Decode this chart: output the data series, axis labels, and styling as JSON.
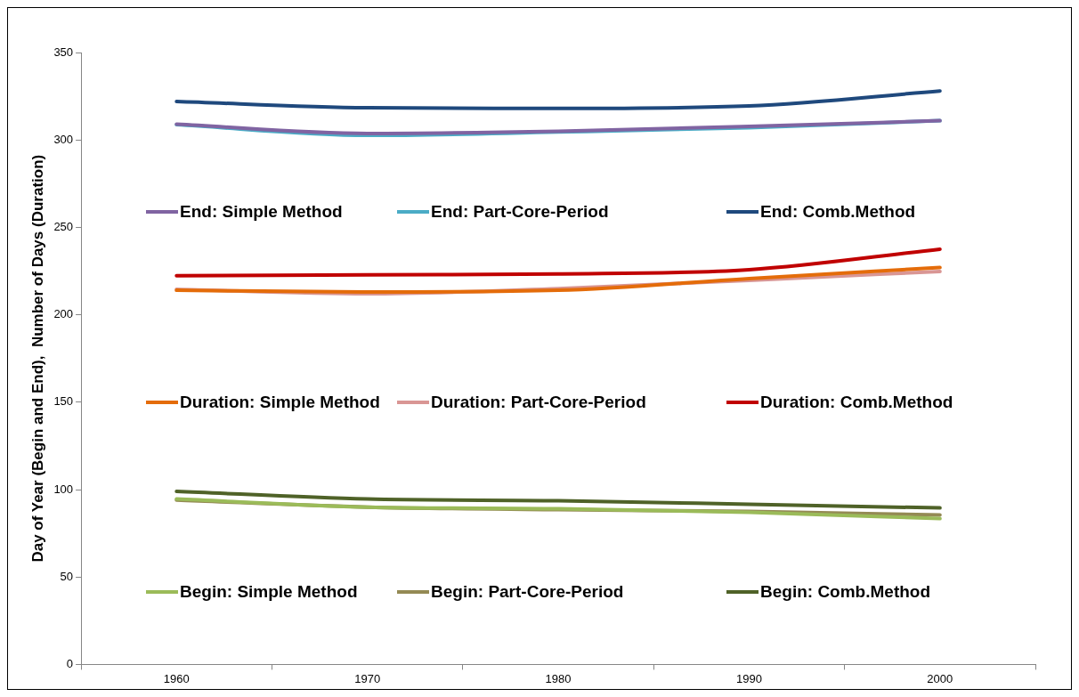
{
  "chart_data": {
    "type": "line",
    "ylabel": "Day of Year (Begin and End),  Number of Days (Duration)",
    "categories": [
      "1960",
      "1970",
      "1980",
      "1990",
      "2000"
    ],
    "ylim": [
      0,
      350
    ],
    "yticks": [
      0,
      50,
      100,
      150,
      200,
      250,
      300,
      350
    ],
    "grid": false,
    "legend": "center",
    "marker": "none",
    "line_style": "solid",
    "series": [
      {
        "name": "End: Simple Method",
        "color": "#8064a2",
        "values": [
          309,
          303.7,
          305,
          307.7,
          311
        ]
      },
      {
        "name": "End: Part-Core-Period",
        "color": "#4bacc6",
        "values": [
          308.7,
          302.6,
          304.5,
          307,
          311
        ]
      },
      {
        "name": "End: Comb.Method",
        "color": "#1f497d",
        "values": [
          322,
          318.4,
          318,
          319.4,
          328
        ]
      },
      {
        "name": "Duration: Simple Method",
        "color": "#e46c0a",
        "values": [
          214,
          213,
          214,
          220.7,
          227
        ]
      },
      {
        "name": "Duration: Part-Core-Period",
        "color": "#d99694",
        "values": [
          214.6,
          212,
          215,
          219.7,
          224.8
        ]
      },
      {
        "name": "Duration: Comb.Method",
        "color": "#c00000",
        "values": [
          222.3,
          222.8,
          223.3,
          225.8,
          237.5
        ]
      },
      {
        "name": "Begin: Simple Method",
        "color": "#9bbb59",
        "values": [
          94.6,
          90,
          89,
          87,
          83.4
        ]
      },
      {
        "name": "Begin: Part-Core-Period",
        "color": "#948a54",
        "values": [
          94,
          90,
          88.5,
          87.5,
          85.5
        ]
      },
      {
        "name": "Begin: Comb.Method",
        "color": "#4f6228",
        "values": [
          99,
          94.6,
          93.6,
          91.6,
          89.5
        ]
      }
    ]
  }
}
